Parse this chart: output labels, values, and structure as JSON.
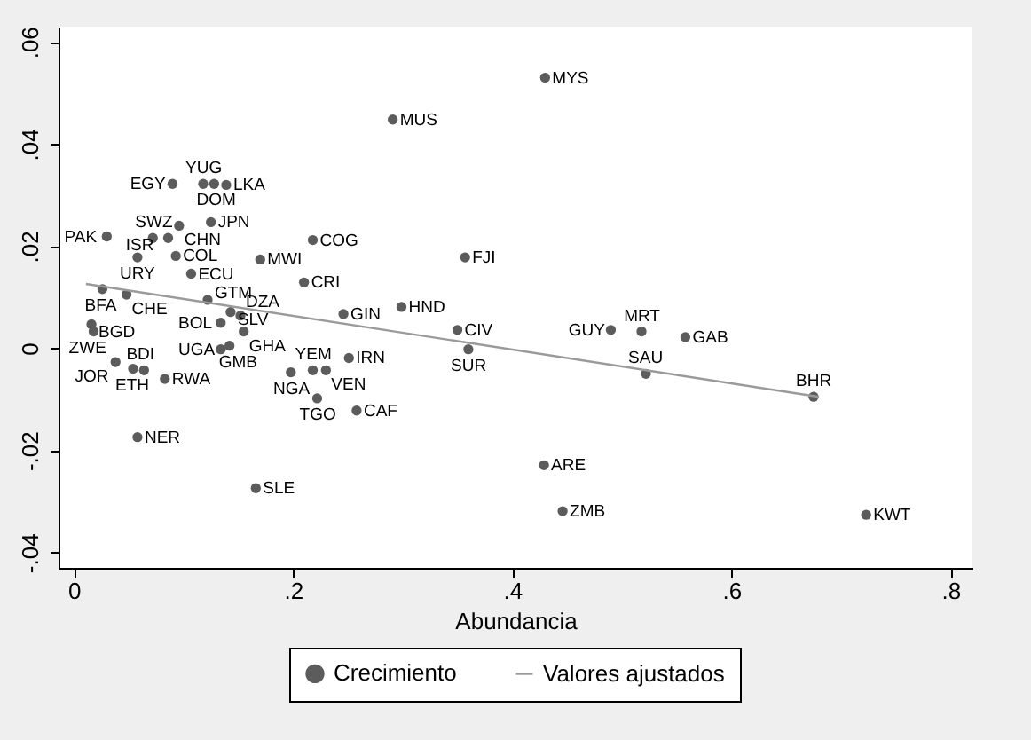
{
  "chart_data": {
    "type": "scatter",
    "xlabel": "Abundancia",
    "xlim": [
      -0.014,
      0.82
    ],
    "ylim": [
      -0.043,
      0.063
    ],
    "xticks": [
      0,
      {
        "value": 0.2,
        "label": ".2"
      },
      {
        "value": 0.4,
        "label": ".4"
      },
      {
        "value": 0.6,
        "label": ".6"
      },
      {
        "value": 0.8,
        "label": ".8"
      }
    ],
    "yticks": [
      {
        "value": -0.04,
        "label": "-.04"
      },
      {
        "value": -0.02,
        "label": "-.02"
      },
      0,
      {
        "value": 0.02,
        "label": ".02"
      },
      {
        "value": 0.04,
        "label": ".04"
      },
      {
        "value": 0.06,
        "label": ".06"
      }
    ],
    "grid": false,
    "legend": "bottom",
    "series": [
      {
        "name": "Crecimiento",
        "marker": "circle",
        "color": "#5c5c5c",
        "x": [
          0.43,
          0.291,
          0.09,
          0.118,
          0.128,
          0.139,
          0.096,
          0.125,
          0.03,
          0.072,
          0.086,
          0.058,
          0.093,
          0.218,
          0.17,
          0.107,
          0.21,
          0.026,
          0.048,
          0.122,
          0.246,
          0.299,
          0.357,
          0.35,
          0.36,
          0.49,
          0.518,
          0.558,
          0.522,
          0.675,
          0.429,
          0.446,
          0.723,
          0.016,
          0.018,
          0.134,
          0.143,
          0.152,
          0.155,
          0.134,
          0.142,
          0.038,
          0.054,
          0.064,
          0.083,
          0.058,
          0.166,
          0.198,
          0.218,
          0.23,
          0.251,
          0.222,
          0.258
        ],
        "values": [
          0.053,
          0.0448,
          0.0322,
          0.0322,
          0.0322,
          0.032,
          0.024,
          0.0247,
          0.0219,
          0.0216,
          0.0216,
          0.0178,
          0.0181,
          0.0212,
          0.0174,
          0.0146,
          0.0129,
          0.0116,
          0.0105,
          0.0095,
          0.0067,
          0.0081,
          0.0178,
          0.0036,
          -0.0002,
          0.0036,
          0.0033,
          0.0022,
          -0.005,
          -0.0095,
          -0.0229,
          -0.0319,
          -0.0326,
          0.0047,
          0.0033,
          0.005,
          0.0071,
          0.0064,
          0.0033,
          -0.0002,
          0.0005,
          -0.0027,
          -0.004,
          -0.0043,
          -0.006,
          -0.0174,
          -0.0274,
          -0.0047,
          -0.0043,
          -0.0043,
          -0.0019,
          -0.0098,
          -0.0122
        ],
        "value_labels": [
          "MYS",
          "MUS",
          "EGY",
          "YUG",
          "DOM",
          "LKA",
          "CHN",
          "JPN",
          "PAK",
          "SWZ",
          "ISR",
          "URY",
          "COL",
          "COG",
          "MWI",
          "ECU",
          "CRI",
          "BFA",
          "CHE",
          "GTM",
          "GIN",
          "HND",
          "FJI",
          "CIV",
          "SUR",
          "GUY",
          "MRT",
          "GAB",
          "SAU",
          "BHR",
          "ARE",
          "ZMB",
          "KWT",
          "BGD",
          "ZWE",
          "BOL",
          "SLV",
          "DZA",
          "GHA",
          "UGA",
          "GMB",
          "JOR",
          "ETH",
          "BDI",
          "RWA",
          "NER",
          "SLE",
          "NGA",
          "YEM",
          "VEN",
          "IRN",
          "TGO",
          "CAF"
        ]
      },
      {
        "name": "Valores ajustados",
        "type": "line",
        "color": "#9a9a9a",
        "x": [
          0.011,
          0.68
        ],
        "values": [
          0.0126,
          -0.0095
        ]
      }
    ]
  }
}
